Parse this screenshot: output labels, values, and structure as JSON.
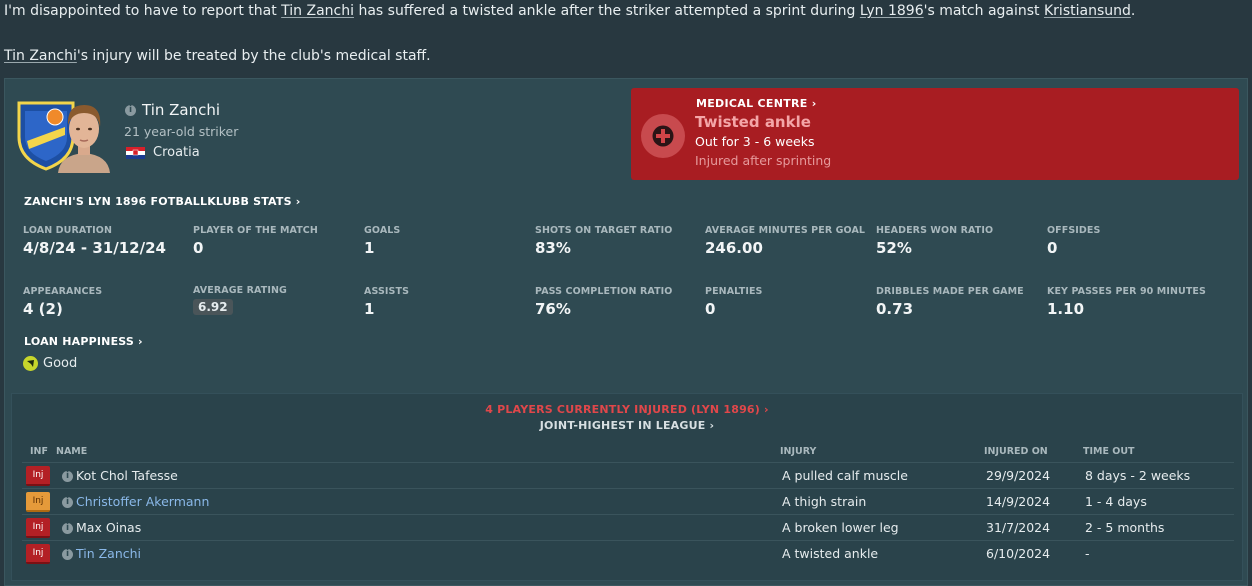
{
  "news": {
    "line1": {
      "p1": "I'm disappointed to have to report that ",
      "player": "Tin Zanchi",
      "p2": " has suffered a twisted ankle after the striker attempted a sprint during ",
      "club": "Lyn 1896",
      "p3": "'s match against ",
      "opponent": "Kristiansund",
      "p4": "."
    },
    "line2": {
      "player": "Tin Zanchi",
      "p1": "'s injury will be treated by the club's medical staff."
    }
  },
  "player": {
    "name": "Tin Zanchi",
    "age_position": "21 year-old striker",
    "nation": "Croatia"
  },
  "medical": {
    "title": "MEDICAL CENTRE ›",
    "injury": "Twisted ankle",
    "out": "Out for 3 - 6 weeks",
    "note": "Injured after sprinting"
  },
  "stats_section": {
    "title": "ZANCHI'S LYN 1896 FOTBALLKLUBB STATS ›",
    "row1": [
      {
        "label": "LOAN DURATION",
        "value": "4/8/24 - 31/12/24"
      },
      {
        "label": "PLAYER OF THE MATCH",
        "value": "0"
      },
      {
        "label": "GOALS",
        "value": "1"
      },
      {
        "label": "SHOTS ON TARGET RATIO",
        "value": "83%"
      },
      {
        "label": "AVERAGE MINUTES PER GOAL",
        "value": "246.00"
      },
      {
        "label": "HEADERS WON RATIO",
        "value": "52%"
      },
      {
        "label": "OFFSIDES",
        "value": "0"
      }
    ],
    "row2": [
      {
        "label": "APPEARANCES",
        "value": "4 (2)"
      },
      {
        "label": "AVERAGE RATING",
        "value": "6.92"
      },
      {
        "label": "ASSISTS",
        "value": "1"
      },
      {
        "label": "PASS COMPLETION RATIO",
        "value": "76%"
      },
      {
        "label": "PENALTIES",
        "value": "0"
      },
      {
        "label": "DRIBBLES MADE PER GAME",
        "value": "0.73"
      },
      {
        "label": "KEY PASSES PER 90 MINUTES",
        "value": "1.10"
      }
    ]
  },
  "loan_happiness": {
    "title": "LOAN HAPPINESS ›",
    "value": "Good"
  },
  "injuries": {
    "header1": "4 PLAYERS CURRENTLY INJURED (LYN 1896) ›",
    "header2": "JOINT-HIGHEST IN LEAGUE ›",
    "columns": {
      "inf": "INF",
      "name": "NAME",
      "injury": "INJURY",
      "injured_on": "INJURED ON",
      "time_out": "TIME OUT"
    },
    "rows": [
      {
        "tag": "Inj",
        "name": "Kot Chol Tafesse",
        "injury": "A pulled calf muscle",
        "injured_on": "29/9/2024",
        "time_out": "8 days - 2 weeks"
      },
      {
        "tag": "Inj",
        "name": "Christoffer Akermann",
        "injury": "A thigh strain",
        "injured_on": "14/9/2024",
        "time_out": "1 - 4 days"
      },
      {
        "tag": "Inj",
        "name": "Max Oinas",
        "injury": "A broken lower leg",
        "injured_on": "31/7/2024",
        "time_out": "2 - 5 months"
      },
      {
        "tag": "Inj",
        "name": "Tin Zanchi",
        "injury": "A twisted ankle",
        "injured_on": "6/10/2024",
        "time_out": "-"
      }
    ]
  },
  "colors": {
    "background": "#283840",
    "panel": "#2f4a52",
    "medical": "#a81d22",
    "injury_red": "#b32025",
    "injury_orange": "#e59a3a",
    "link_blue": "#8ab8e8",
    "header_red": "#e0474a"
  }
}
